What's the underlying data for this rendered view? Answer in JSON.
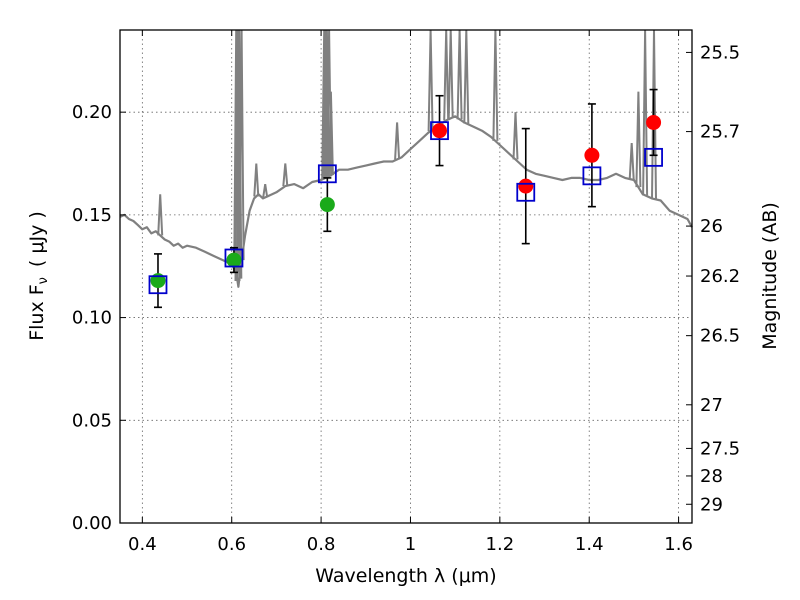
{
  "chart_data": {
    "type": "scatter",
    "xlabel": "Wavelength  λ (μm)",
    "ylabel": "Flux  F",
    "ylabel_sub": "ν",
    "ylabel_unit": "( μJy )",
    "y2label": "Magnitude (AB)",
    "xlim": [
      0.35,
      1.63
    ],
    "ylim": [
      0.0,
      0.24
    ],
    "grid": true,
    "x_ticks": [
      0.4,
      0.6,
      0.8,
      1.0,
      1.2,
      1.4,
      1.6
    ],
    "x_tick_labels": [
      "0.4",
      "0.6",
      "0.8",
      "1",
      "1.2",
      "1.4",
      "1.6"
    ],
    "y_ticks": [
      0.0,
      0.05,
      0.1,
      0.15,
      0.2
    ],
    "y_tick_labels": [
      "0.00",
      "0.05",
      "0.10",
      "0.15",
      "0.20"
    ],
    "y2_tick_labels": [
      "25.5",
      "25.7",
      "26",
      "26.2",
      "26.5",
      "27",
      "27.5",
      "28",
      "29"
    ],
    "y2_tick_values": [
      25.5,
      25.7,
      26,
      26.2,
      26.5,
      27,
      27.5,
      28,
      29
    ],
    "series": [
      {
        "marker": "circle",
        "color": "#1aaa1a",
        "x": [
          0.435,
          0.605,
          0.814
        ],
        "y": [
          0.118,
          0.128,
          0.155
        ],
        "yerr": [
          0.013,
          0.006,
          0.013
        ]
      },
      {
        "marker": "circle",
        "color": "#ff0000",
        "x": [
          1.065,
          1.258,
          1.406,
          1.544
        ],
        "y": [
          0.191,
          0.164,
          0.179,
          0.195
        ],
        "yerr": [
          0.017,
          0.028,
          0.025,
          0.016
        ]
      },
      {
        "marker": "open-square",
        "color": "#0000cc",
        "x": [
          0.435,
          0.605,
          0.814,
          1.065,
          1.258,
          1.406,
          1.544
        ],
        "y": [
          0.116,
          0.129,
          0.17,
          0.191,
          0.161,
          0.169,
          0.178
        ]
      }
    ],
    "model_spectrum": {
      "color": "#808080",
      "x": [
        0.35,
        0.36,
        0.37,
        0.38,
        0.39,
        0.4,
        0.41,
        0.42,
        0.43,
        0.44,
        0.45,
        0.46,
        0.47,
        0.48,
        0.49,
        0.5,
        0.52,
        0.54,
        0.56,
        0.58,
        0.6,
        0.61,
        0.615,
        0.62,
        0.63,
        0.64,
        0.65,
        0.66,
        0.67,
        0.68,
        0.7,
        0.72,
        0.74,
        0.76,
        0.78,
        0.8,
        0.82,
        0.84,
        0.86,
        0.88,
        0.9,
        0.92,
        0.94,
        0.96,
        0.98,
        1.0,
        1.02,
        1.04,
        1.06,
        1.08,
        1.1,
        1.12,
        1.14,
        1.16,
        1.18,
        1.2,
        1.22,
        1.24,
        1.26,
        1.28,
        1.3,
        1.32,
        1.34,
        1.36,
        1.38,
        1.4,
        1.42,
        1.44,
        1.46,
        1.48,
        1.5,
        1.52,
        1.54,
        1.56,
        1.58,
        1.6,
        1.62,
        1.63
      ],
      "y": [
        0.149,
        0.15,
        0.148,
        0.147,
        0.145,
        0.143,
        0.144,
        0.141,
        0.142,
        0.14,
        0.138,
        0.137,
        0.135,
        0.136,
        0.134,
        0.135,
        0.134,
        0.132,
        0.13,
        0.128,
        0.126,
        0.122,
        0.115,
        0.125,
        0.14,
        0.152,
        0.158,
        0.16,
        0.158,
        0.159,
        0.161,
        0.164,
        0.165,
        0.163,
        0.166,
        0.167,
        0.169,
        0.172,
        0.172,
        0.173,
        0.174,
        0.175,
        0.176,
        0.176,
        0.178,
        0.182,
        0.186,
        0.19,
        0.193,
        0.196,
        0.198,
        0.195,
        0.193,
        0.191,
        0.188,
        0.184,
        0.18,
        0.176,
        0.172,
        0.17,
        0.169,
        0.168,
        0.167,
        0.168,
        0.168,
        0.167,
        0.167,
        0.168,
        0.17,
        0.168,
        0.167,
        0.16,
        0.158,
        0.157,
        0.152,
        0.15,
        0.148,
        0.144
      ]
    },
    "emission_lines": {
      "color": "#808080",
      "x": [
        0.44,
        0.61,
        0.613,
        0.617,
        0.622,
        0.655,
        0.675,
        0.72,
        0.807,
        0.81,
        0.813,
        0.818,
        0.822,
        0.97,
        1.045,
        1.08,
        1.09,
        1.11,
        1.125,
        1.19,
        1.235,
        1.495,
        1.51,
        1.525,
        1.545
      ],
      "y": [
        0.16,
        0.24,
        0.24,
        0.24,
        0.24,
        0.175,
        0.165,
        0.175,
        0.24,
        0.24,
        0.24,
        0.24,
        0.21,
        0.195,
        0.24,
        0.24,
        0.24,
        0.24,
        0.24,
        0.24,
        0.2,
        0.185,
        0.21,
        0.24,
        0.24
      ]
    }
  }
}
